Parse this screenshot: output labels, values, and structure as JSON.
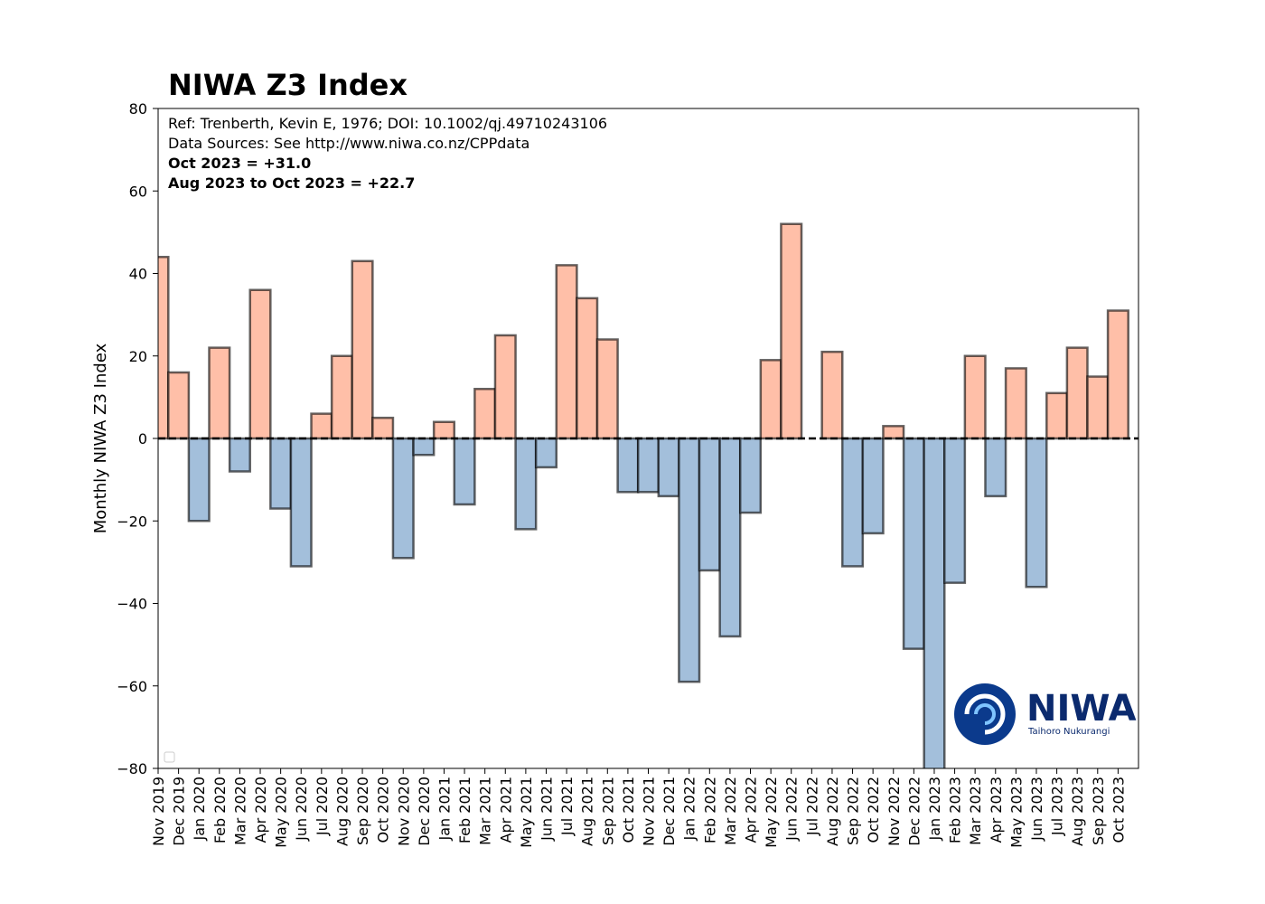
{
  "chart_data": {
    "type": "bar",
    "title": "NIWA Z3 Index",
    "y_label": "Monthly NIWA Z3 Index",
    "annotations": [
      {
        "text": "Ref: Trenberth, Kevin E, 1976; DOI: 10.1002/qj.49710243106",
        "bold": false
      },
      {
        "text": "Data Sources: See http://www.niwa.co.nz/CPPdata",
        "bold": false
      },
      {
        "text": "Oct 2023 = +31.0",
        "bold": true
      },
      {
        "text": "Aug 2023 to Oct 2023 = +22.7",
        "bold": true
      }
    ],
    "logo_text": "NIWA",
    "logo_subtext": "Taihoro Nukurangi",
    "categories": [
      "Nov 2019",
      "Dec 2019",
      "Jan 2020",
      "Feb 2020",
      "Mar 2020",
      "Apr 2020",
      "May 2020",
      "Jun 2020",
      "Jul 2020",
      "Aug 2020",
      "Sep 2020",
      "Oct 2020",
      "Nov 2020",
      "Dec 2020",
      "Jan 2021",
      "Feb 2021",
      "Mar 2021",
      "Apr 2021",
      "May 2021",
      "Jun 2021",
      "Jul 2021",
      "Aug 2021",
      "Sep 2021",
      "Oct 2021",
      "Nov 2021",
      "Dec 2021",
      "Jan 2022",
      "Feb 2022",
      "Mar 2022",
      "Apr 2022",
      "May 2022",
      "Jun 2022",
      "Jul 2022",
      "Aug 2022",
      "Sep 2022",
      "Oct 2022",
      "Nov 2022",
      "Dec 2022",
      "Jan 2023",
      "Feb 2023",
      "Mar 2023",
      "Apr 2023",
      "May 2023",
      "Jun 2023",
      "Jul 2023",
      "Aug 2023",
      "Sep 2023",
      "Oct 2023"
    ],
    "values": [
      44,
      16,
      -20,
      22,
      -8,
      36,
      -17,
      -31,
      6,
      20,
      43,
      5,
      -29,
      -4,
      4,
      -16,
      12,
      25,
      -22,
      -7,
      42,
      34,
      24,
      -13,
      -13,
      -14,
      -59,
      -32,
      -48,
      -18,
      19,
      52,
      0,
      21,
      -31,
      -23,
      3,
      -51,
      -85,
      -35,
      20,
      -14,
      17,
      -36,
      11,
      22,
      15,
      31
    ],
    "colors": {
      "positive": "#ffbfa8",
      "negative": "#a3bfdb"
    },
    "ylim": [
      -80,
      80
    ],
    "yticks": [
      {
        "value": -80,
        "label": "−80"
      },
      {
        "value": -60,
        "label": "−60"
      },
      {
        "value": -40,
        "label": "−40"
      },
      {
        "value": -20,
        "label": "−20"
      },
      0,
      20,
      40,
      60,
      80
    ],
    "zero_line": true
  }
}
